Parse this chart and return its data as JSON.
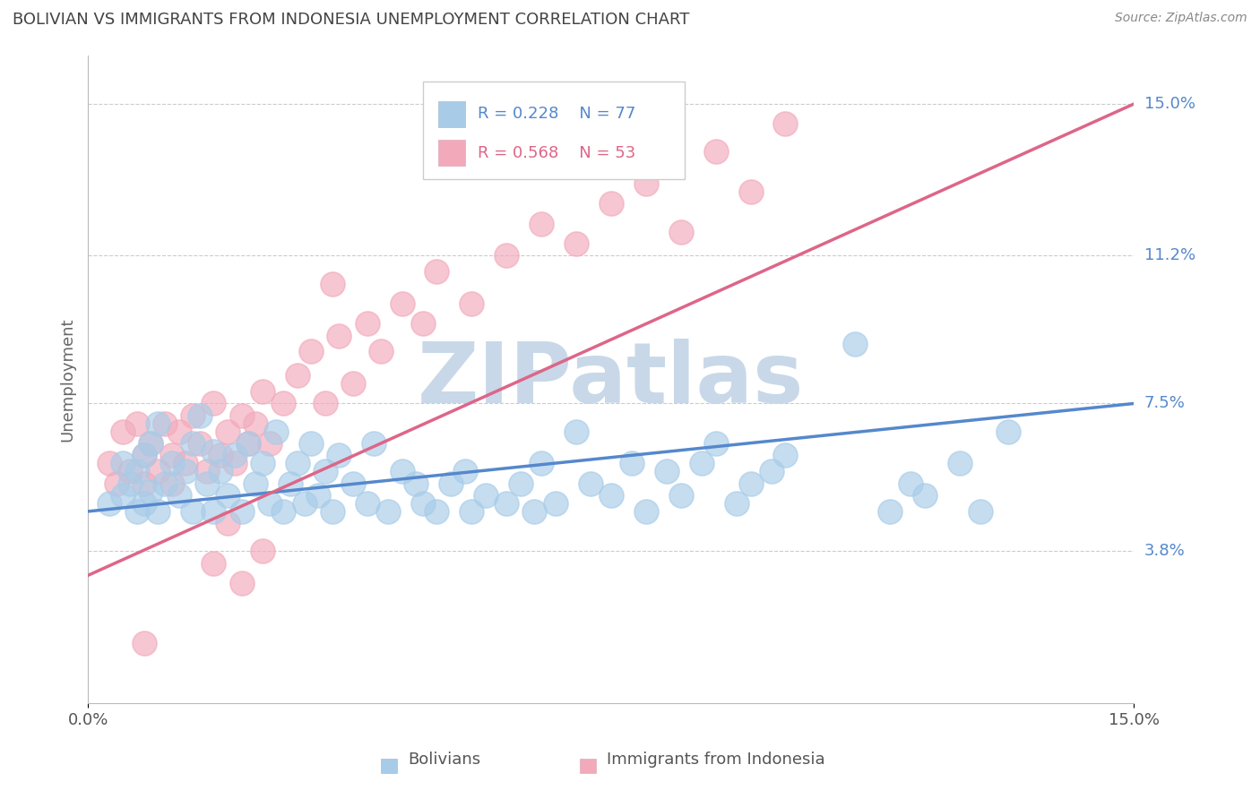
{
  "title": "BOLIVIAN VS IMMIGRANTS FROM INDONESIA UNEMPLOYMENT CORRELATION CHART",
  "source": "Source: ZipAtlas.com",
  "ylabel": "Unemployment",
  "ytick_labels": [
    "15.0%",
    "11.2%",
    "7.5%",
    "3.8%"
  ],
  "ytick_values": [
    0.15,
    0.112,
    0.075,
    0.038
  ],
  "xlim": [
    0.0,
    0.15
  ],
  "ylim": [
    0.0,
    0.162
  ],
  "legend_blue_r": "R = 0.228",
  "legend_blue_n": "N = 77",
  "legend_pink_r": "R = 0.568",
  "legend_pink_n": "N = 53",
  "blue_color": "#A8CCE8",
  "pink_color": "#F2AABB",
  "line_blue_color": "#5588CC",
  "line_pink_color": "#DD6688",
  "watermark_color": "#C8D8E8",
  "title_color": "#444444",
  "source_color": "#888888",
  "tick_label_color": "#5588CC",
  "blue_line_start_y": 0.048,
  "blue_line_end_y": 0.075,
  "pink_line_start_y": 0.032,
  "pink_line_end_y": 0.15,
  "blue_x": [
    0.003,
    0.005,
    0.005,
    0.006,
    0.007,
    0.007,
    0.008,
    0.008,
    0.009,
    0.009,
    0.01,
    0.01,
    0.011,
    0.012,
    0.013,
    0.014,
    0.015,
    0.015,
    0.016,
    0.017,
    0.018,
    0.018,
    0.019,
    0.02,
    0.021,
    0.022,
    0.023,
    0.024,
    0.025,
    0.026,
    0.027,
    0.028,
    0.029,
    0.03,
    0.031,
    0.032,
    0.033,
    0.034,
    0.035,
    0.036,
    0.038,
    0.04,
    0.041,
    0.043,
    0.045,
    0.047,
    0.048,
    0.05,
    0.052,
    0.054,
    0.055,
    0.057,
    0.06,
    0.062,
    0.064,
    0.065,
    0.067,
    0.07,
    0.072,
    0.075,
    0.078,
    0.08,
    0.083,
    0.085,
    0.088,
    0.09,
    0.093,
    0.095,
    0.098,
    0.1,
    0.11,
    0.115,
    0.118,
    0.12,
    0.125,
    0.128,
    0.132
  ],
  "blue_y": [
    0.05,
    0.06,
    0.052,
    0.055,
    0.058,
    0.048,
    0.062,
    0.05,
    0.065,
    0.053,
    0.07,
    0.048,
    0.055,
    0.06,
    0.052,
    0.058,
    0.065,
    0.048,
    0.072,
    0.055,
    0.063,
    0.048,
    0.058,
    0.052,
    0.062,
    0.048,
    0.065,
    0.055,
    0.06,
    0.05,
    0.068,
    0.048,
    0.055,
    0.06,
    0.05,
    0.065,
    0.052,
    0.058,
    0.048,
    0.062,
    0.055,
    0.05,
    0.065,
    0.048,
    0.058,
    0.055,
    0.05,
    0.048,
    0.055,
    0.058,
    0.048,
    0.052,
    0.05,
    0.055,
    0.048,
    0.06,
    0.05,
    0.068,
    0.055,
    0.052,
    0.06,
    0.048,
    0.058,
    0.052,
    0.06,
    0.065,
    0.05,
    0.055,
    0.058,
    0.062,
    0.09,
    0.048,
    0.055,
    0.052,
    0.06,
    0.048,
    0.068
  ],
  "pink_x": [
    0.003,
    0.004,
    0.005,
    0.006,
    0.007,
    0.008,
    0.008,
    0.009,
    0.01,
    0.011,
    0.012,
    0.012,
    0.013,
    0.014,
    0.015,
    0.016,
    0.017,
    0.018,
    0.019,
    0.02,
    0.021,
    0.022,
    0.023,
    0.024,
    0.025,
    0.026,
    0.028,
    0.03,
    0.032,
    0.034,
    0.036,
    0.038,
    0.04,
    0.042,
    0.045,
    0.048,
    0.05,
    0.055,
    0.06,
    0.065,
    0.07,
    0.075,
    0.08,
    0.085,
    0.09,
    0.095,
    0.1,
    0.035,
    0.018,
    0.02,
    0.022,
    0.008,
    0.025
  ],
  "pink_y": [
    0.06,
    0.055,
    0.068,
    0.058,
    0.07,
    0.055,
    0.062,
    0.065,
    0.058,
    0.07,
    0.062,
    0.055,
    0.068,
    0.06,
    0.072,
    0.065,
    0.058,
    0.075,
    0.062,
    0.068,
    0.06,
    0.072,
    0.065,
    0.07,
    0.078,
    0.065,
    0.075,
    0.082,
    0.088,
    0.075,
    0.092,
    0.08,
    0.095,
    0.088,
    0.1,
    0.095,
    0.108,
    0.1,
    0.112,
    0.12,
    0.115,
    0.125,
    0.13,
    0.118,
    0.138,
    0.128,
    0.145,
    0.105,
    0.035,
    0.045,
    0.03,
    0.015,
    0.038
  ]
}
